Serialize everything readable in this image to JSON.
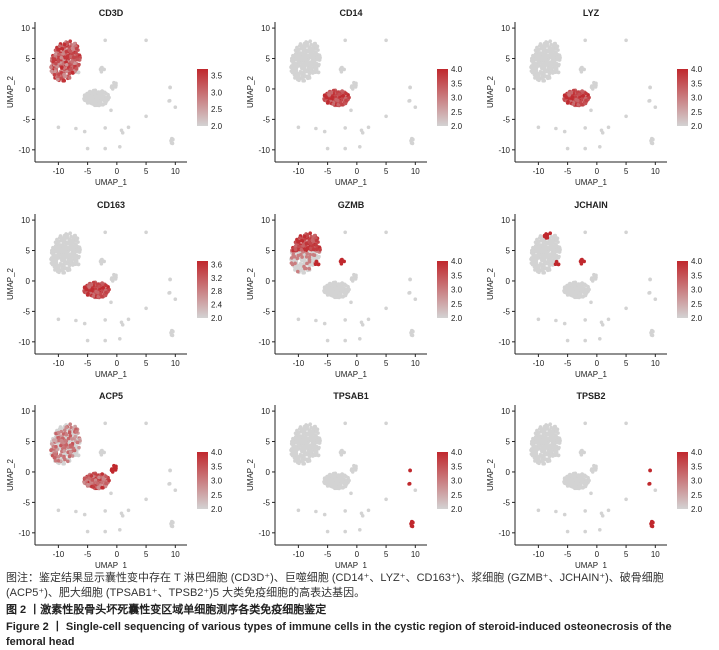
{
  "chart_data": [
    {
      "type": "scatter",
      "title": "CD3D",
      "xlabel": "UMAP_1",
      "ylabel": "UMAP_2",
      "xlim": [
        -14,
        12
      ],
      "ylim": [
        -12,
        11
      ],
      "xticks": [
        -10,
        -5,
        0,
        5,
        10
      ],
      "yticks": [
        10,
        5,
        0,
        -5,
        -10
      ],
      "colorbar": {
        "ticks": [
          "3.5",
          "3.0",
          "2.5",
          "2.0"
        ],
        "min": 2.0,
        "max": 3.7
      },
      "highlight": [
        "tcell"
      ]
    },
    {
      "type": "scatter",
      "title": "CD14",
      "xlabel": "UMAP_1",
      "ylabel": "UMAP_2",
      "xlim": [
        -14,
        12
      ],
      "ylim": [
        -12,
        11
      ],
      "xticks": [
        -10,
        -5,
        0,
        5,
        10
      ],
      "yticks": [
        10,
        5,
        0,
        -5,
        -10
      ],
      "colorbar": {
        "ticks": [
          "4.0",
          "3.5",
          "3.0",
          "2.5",
          "2.0"
        ],
        "min": 2.0,
        "max": 4.0
      },
      "highlight": [
        "macro"
      ]
    },
    {
      "type": "scatter",
      "title": "LYZ",
      "xlabel": "UMAP_1",
      "ylabel": "UMAP_2",
      "xlim": [
        -14,
        12
      ],
      "ylim": [
        -12,
        11
      ],
      "xticks": [
        -10,
        -5,
        0,
        5,
        10
      ],
      "yticks": [
        10,
        5,
        0,
        -5,
        -10
      ],
      "colorbar": {
        "ticks": [
          "4.0",
          "3.5",
          "3.0",
          "2.5",
          "2.0"
        ],
        "min": 2.0,
        "max": 4.0
      },
      "highlight": [
        "macro"
      ]
    },
    {
      "type": "scatter",
      "title": "CD163",
      "xlabel": "UMAP_1",
      "ylabel": "UMAP_2",
      "xlim": [
        -14,
        12
      ],
      "ylim": [
        -12,
        11
      ],
      "xticks": [
        -10,
        -5,
        0,
        5,
        10
      ],
      "yticks": [
        10,
        5,
        0,
        -5,
        -10
      ],
      "colorbar": {
        "ticks": [
          "3.6",
          "3.2",
          "2.8",
          "2.4",
          "2.0"
        ],
        "min": 2.0,
        "max": 3.7
      },
      "highlight": [
        "macro"
      ]
    },
    {
      "type": "scatter",
      "title": "GZMB",
      "xlabel": "UMAP_1",
      "ylabel": "UMAP_2",
      "xlim": [
        -14,
        12
      ],
      "ylim": [
        -12,
        11
      ],
      "xticks": [
        -10,
        -5,
        0,
        5,
        10
      ],
      "yticks": [
        10,
        5,
        0,
        -5,
        -10
      ],
      "colorbar": {
        "ticks": [
          "4.0",
          "3.5",
          "3.0",
          "2.5",
          "2.0"
        ],
        "min": 2.0,
        "max": 4.0
      },
      "highlight": [
        "tcell_top",
        "plasma_small"
      ]
    },
    {
      "type": "scatter",
      "title": "JCHAIN",
      "xlabel": "UMAP_1",
      "ylabel": "UMAP_2",
      "xlim": [
        -14,
        12
      ],
      "ylim": [
        -12,
        11
      ],
      "xticks": [
        -10,
        -5,
        0,
        5,
        10
      ],
      "yticks": [
        10,
        5,
        0,
        -5,
        -10
      ],
      "colorbar": {
        "ticks": [
          "4.0",
          "3.5",
          "3.0",
          "2.5",
          "2.0"
        ],
        "min": 2.0,
        "max": 4.0
      },
      "highlight": [
        "plasma_small",
        "plasma_tiny"
      ]
    },
    {
      "type": "scatter",
      "title": "ACP5",
      "xlabel": "UMAP_1",
      "ylabel": "UMAP_2",
      "xlim": [
        -14,
        12
      ],
      "ylim": [
        -12,
        11
      ],
      "xticks": [
        -10,
        -5,
        0,
        5,
        10
      ],
      "yticks": [
        10,
        5,
        0,
        -5,
        -10
      ],
      "colorbar": {
        "ticks": [
          "4.0",
          "3.5",
          "3.0",
          "2.5",
          "2.0"
        ],
        "min": 2.0,
        "max": 4.0
      },
      "highlight": [
        "macro_partial",
        "osteoclast"
      ]
    },
    {
      "type": "scatter",
      "title": "TPSAB1",
      "xlabel": "UMAP_1",
      "ylabel": "UMAP_2",
      "xlim": [
        -14,
        12
      ],
      "ylim": [
        -12,
        11
      ],
      "xticks": [
        -10,
        -5,
        0,
        5,
        10
      ],
      "yticks": [
        10,
        5,
        0,
        -5,
        -10
      ],
      "colorbar": {
        "ticks": [
          "4.0",
          "3.5",
          "3.0",
          "2.5",
          "2.0"
        ],
        "min": 2.0,
        "max": 4.0
      },
      "highlight": [
        "mast"
      ]
    },
    {
      "type": "scatter",
      "title": "TPSB2",
      "xlabel": "UMAP_1",
      "ylabel": "UMAP_2",
      "xlim": [
        -14,
        12
      ],
      "ylim": [
        -12,
        11
      ],
      "xticks": [
        -10,
        -5,
        0,
        5,
        10
      ],
      "yticks": [
        10,
        5,
        0,
        -5,
        -10
      ],
      "colorbar": {
        "ticks": [
          "4.0",
          "3.5",
          "3.0",
          "2.5",
          "2.0"
        ],
        "min": 2.0,
        "max": 4.0
      },
      "highlight": [
        "mast"
      ]
    }
  ],
  "caption": {
    "note": "图注：鉴定结果显示囊性变中存在 T 淋巴细胞 (CD3D⁺)、巨噬细胞 (CD14⁺、LYZ⁺、CD163⁺)、浆细胞 (GZMB⁺、JCHAIN⁺)、破骨细胞 (ACP5⁺)、肥大细胞 (TPSAB1⁺、TPSB2⁺)5 大类免疫细胞的高表达基因。",
    "figure_cn": "图 2 丨激素性股骨头坏死囊性变区域单细胞测序各类免疫细胞鉴定",
    "figure_en": "Figure 2 丨 Single-cell sequencing of various types of immune cells in the cystic region of steroid-induced osteonecrosis of the femoral head"
  },
  "colors": {
    "low": "#d3d3d3",
    "high": "#c0282d",
    "axis": "#222222"
  }
}
